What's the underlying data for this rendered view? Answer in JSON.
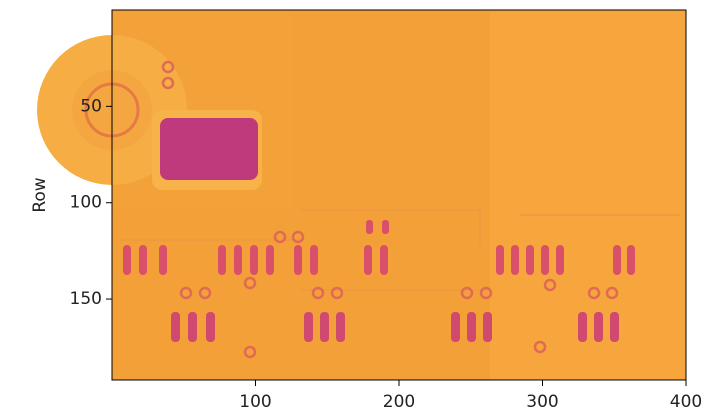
{
  "chart_data": {
    "type": "image",
    "ylabel": "Row",
    "xlim": [
      0,
      400
    ],
    "ylim": [
      192,
      0
    ],
    "xticks": [
      100,
      200,
      300,
      400
    ],
    "yticks": [
      50,
      100,
      150
    ],
    "grid": false
  }
}
